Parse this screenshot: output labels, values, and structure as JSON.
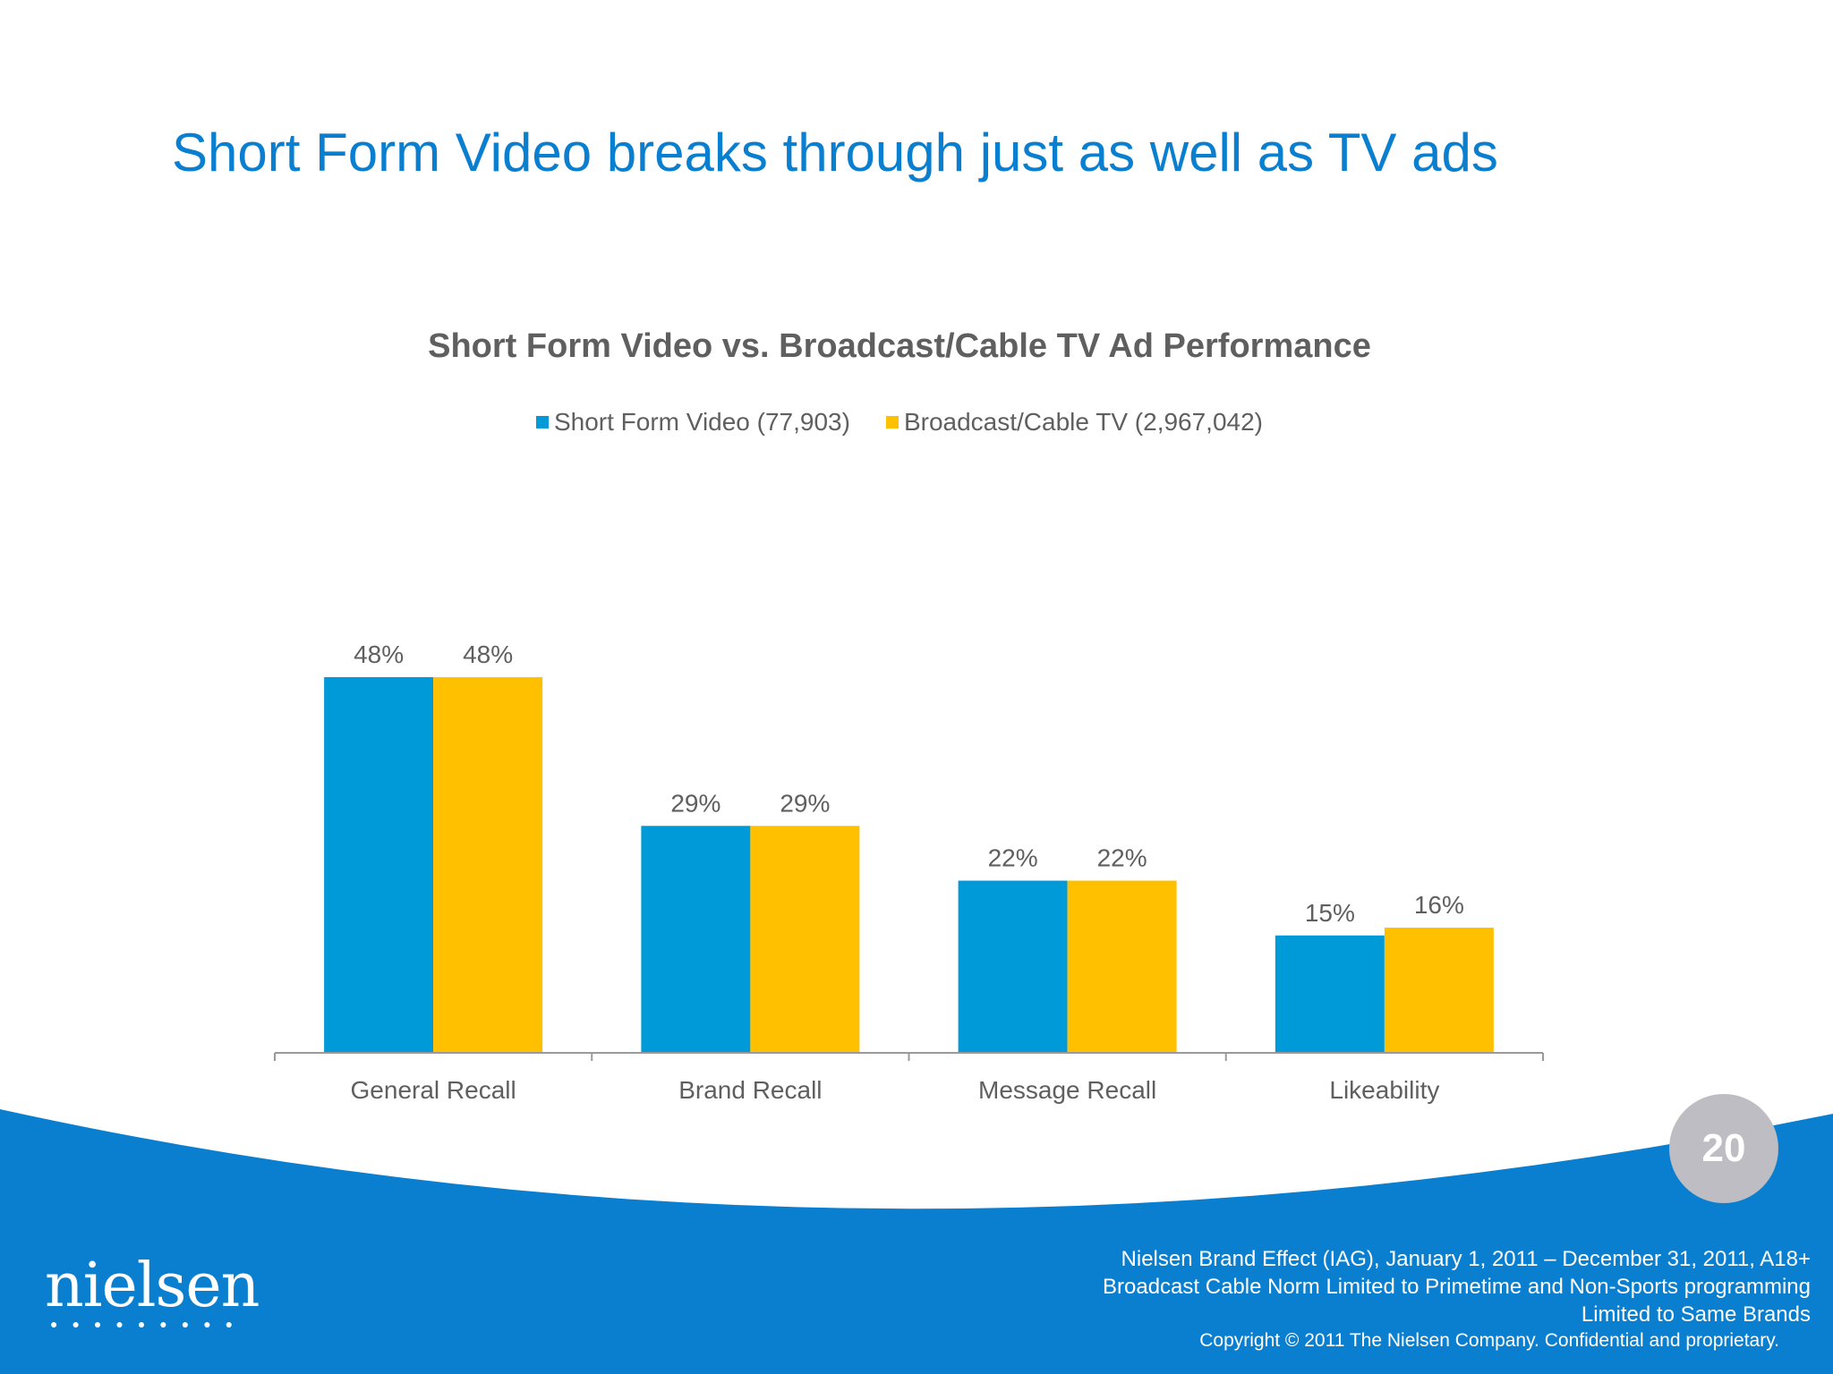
{
  "slide": {
    "title": "Short Form Video breaks through just as well as TV ads",
    "page_number": "20",
    "logo": "nielsen",
    "source_lines": [
      "Nielsen Brand Effect (IAG), January 1, 2011 – December 31, 2011, A18+",
      "Broadcast Cable Norm Limited to Primetime and Non-Sports programming",
      "Limited to Same Brands"
    ],
    "copyright": "Copyright © 2011 The Nielsen Company. Confidential and proprietary."
  },
  "chart_data": {
    "type": "bar",
    "title": "Short Form Video vs. Broadcast/Cable TV Ad Performance",
    "categories": [
      "General Recall",
      "Brand Recall",
      "Message Recall",
      "Likeability"
    ],
    "series": [
      {
        "name": "Short Form Video (77,903)",
        "values": [
          48,
          29,
          22,
          15
        ],
        "labels": [
          "48%",
          "29%",
          "22%",
          "15%"
        ],
        "color": "#009ad8"
      },
      {
        "name": "Broadcast/Cable TV (2,967,042)",
        "values": [
          48,
          29,
          22,
          16
        ],
        "labels": [
          "48%",
          "29%",
          "22%",
          "16%"
        ],
        "color": "#ffc000"
      }
    ],
    "ylim": [
      0,
      48
    ],
    "legend_position": "top",
    "grid": false
  },
  "colors": {
    "title": "#0a7fd0",
    "band": "#0a7fd0",
    "page_circle": "#bdbdc3"
  }
}
